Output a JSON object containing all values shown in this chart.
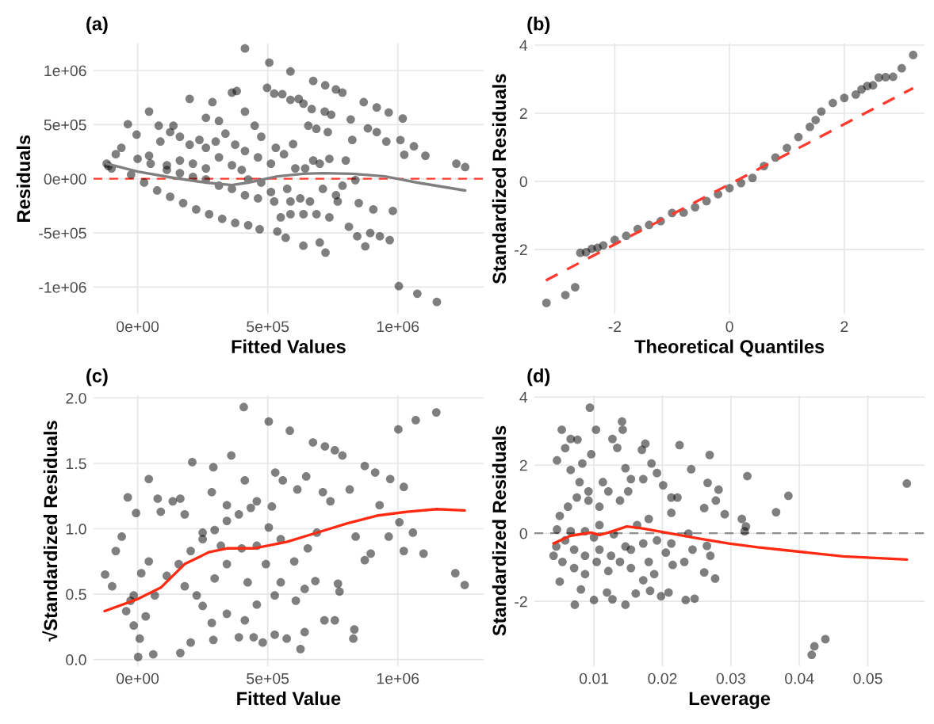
{
  "chart_data": [
    {
      "type": "scatter",
      "title": "(a)",
      "xlabel": "Fitted Values",
      "ylabel": "Residuals",
      "grid": true,
      "xlim": [
        -170000,
        1330000
      ],
      "ylim": [
        -1250000,
        1250000
      ],
      "xticks": [
        {
          "value": 0,
          "label": "0e+00"
        },
        {
          "value": 500000,
          "label": "5e+05"
        },
        {
          "value": 1000000,
          "label": "1e+06"
        }
      ],
      "yticks": [
        {
          "value": -1000000,
          "label": "-1e+06"
        },
        {
          "value": -500000,
          "label": "-5e+05"
        },
        {
          "value": 0,
          "label": "0e+00"
        },
        {
          "value": 500000,
          "label": "5e+05"
        },
        {
          "value": 1000000,
          "label": "1e+06"
        }
      ],
      "ref_lines": [
        {
          "axis": "y",
          "value": 0,
          "color": "#ff3b2f",
          "line_style": "dashed"
        }
      ],
      "series": [
        {
          "marker": "circle",
          "color": "#000000",
          "x": [
            412500,
            506000,
            587500,
            675000,
            721000,
            762000,
            787000,
            497500,
            525000,
            556000,
            587500,
            619000,
            637500,
            669000,
            869000,
            919000,
            965000,
            1019000,
            819000,
            885000,
            919000,
            956000,
            1010000,
            1062000,
            1106000,
            1025000,
            1225000,
            1259000,
            837000,
            850000,
            906000,
            981000,
            812000,
            844000,
            894000,
            931000,
            969000,
            875000,
            1004000,
            1075000,
            1150000,
            722000,
            700000,
            637000,
            569000,
            537000,
            550000,
            737000,
            769000,
            712000,
            737000,
            731000,
            719000,
            744000,
            656000,
            687000,
            597500,
            531000,
            475000,
            412500,
            362500,
            381000,
            287500,
            262500,
            312500,
            200000,
            137500,
            81000,
            44000,
            -37500,
            -4000,
            -62500,
            -84000,
            -119000,
            -112000,
            -100000,
            -25000,
            25000,
            75000,
            125000,
            175000,
            225000,
            275000,
            325000,
            375000,
            425000,
            469000,
            87500,
            125000,
            162500,
            200000,
            237500,
            262500,
            300000,
            337500,
            375000,
            412500,
            450000,
            462500,
            512500,
            562500,
            606000,
            644000,
            675000,
            162500,
            212500,
            262500,
            312500,
            362500,
            400000,
            425000,
            475000,
            512500,
            575000,
            587500,
            625000,
            662500,
            687500,
            637500,
            587500,
            525000,
            462500,
            412500,
            362500,
            312500,
            262500,
            212500,
            162500,
            112500,
            50000,
            0,
            44000,
            112500,
            700000,
            762500,
            787500,
            800000,
            825000
          ],
          "values": [
            1204000,
            1073000,
            991000,
            904000,
            863000,
            825000,
            796000,
            840000,
            787000,
            781000,
            729000,
            738000,
            694000,
            644000,
            708000,
            659000,
            612000,
            557000,
            548000,
            466000,
            431000,
            344000,
            358000,
            300000,
            213000,
            222000,
            140000,
            108000,
            -12000,
            -224000,
            -283000,
            -297000,
            -443000,
            -531000,
            -501000,
            -531000,
            -566000,
            -624000,
            -991000,
            -1061000,
            -1137000,
            -682000,
            -589000,
            -618000,
            -545000,
            -487000,
            -356000,
            -356000,
            -210000,
            -93000,
            184000,
            431000,
            621000,
            592000,
            490000,
            461000,
            321000,
            286000,
            388000,
            621000,
            796000,
            810000,
            708000,
            563000,
            534000,
            738000,
            490000,
            490000,
            621000,
            504000,
            408000,
            286000,
            227000,
            140000,
            117000,
            96000,
            38000,
            -35000,
            -108000,
            -166000,
            -224000,
            -283000,
            -327000,
            -370000,
            -408000,
            -429000,
            -466000,
            344000,
            431000,
            388000,
            315000,
            359000,
            286000,
            344000,
            417000,
            315000,
            257000,
            490000,
            198000,
            140000,
            227000,
            96000,
            96000,
            169000,
            169000,
            140000,
            96000,
            198000,
            125000,
            82000,
            -6000,
            -35000,
            -122000,
            -93000,
            -210000,
            -181000,
            -210000,
            -327000,
            -327000,
            -327000,
            -210000,
            -181000,
            -152000,
            -93000,
            -64000,
            -6000,
            17000,
            52000,
            82000,
            140000,
            184000,
            213000,
            125000,
            140000,
            -152000,
            -64000,
            169000,
            359000
          ]
        },
        {
          "type": "line",
          "color": "#7f7f7f",
          "line_style": "solid",
          "x": [
            -119000,
            0,
            137500,
            262500,
            362500,
            425000,
            537500,
            637500,
            712500,
            825000,
            950000,
            1075000,
            1259000
          ],
          "values": [
            140000,
            67000,
            9000,
            -35000,
            -58000,
            -35000,
            23000,
            47000,
            52000,
            47000,
            23000,
            -35000,
            -108000
          ]
        }
      ]
    },
    {
      "type": "scatter",
      "title": "(b)",
      "xlabel": "Theoretical Quantiles",
      "ylabel": "Standardized Residuals",
      "grid": true,
      "xlim": [
        -3.4,
        3.4
      ],
      "ylim": [
        -3.9,
        4.05
      ],
      "xticks": [
        -2,
        0,
        2
      ],
      "yticks": [
        -2,
        0,
        2,
        4
      ],
      "series": [
        {
          "marker": "circle",
          "color": "#000000",
          "x": [
            -3.19,
            -2.86,
            -2.69,
            -2.6,
            -2.5,
            -2.4,
            -2.3,
            -2.2,
            -2.0,
            -1.8,
            -1.6,
            -1.4,
            -1.2,
            -1.0,
            -0.8,
            -0.6,
            -0.4,
            -0.2,
            0,
            0.2,
            0.4,
            0.6,
            0.8,
            1.0,
            1.2,
            1.4,
            1.5,
            1.6,
            1.8,
            2.0,
            2.2,
            2.3,
            2.4,
            2.5,
            2.6,
            2.72,
            2.85,
            3.0,
            3.2
          ],
          "values": [
            -3.57,
            -3.34,
            -3.11,
            -2.1,
            -2.08,
            -1.98,
            -1.95,
            -1.88,
            -1.72,
            -1.6,
            -1.4,
            -1.28,
            -1.17,
            -0.93,
            -0.92,
            -0.76,
            -0.58,
            -0.38,
            -0.2,
            -0.05,
            0.1,
            0.45,
            0.7,
            0.98,
            1.3,
            1.6,
            1.8,
            2.05,
            2.3,
            2.45,
            2.55,
            2.7,
            2.8,
            2.82,
            3.05,
            3.06,
            3.07,
            3.32,
            3.71
          ]
        },
        {
          "type": "line",
          "color": "#ff3b2f",
          "line_style": "dashed",
          "x": [
            -3.2,
            3.2
          ],
          "values": [
            -2.91,
            2.74
          ]
        }
      ]
    },
    {
      "type": "scatter",
      "title": "(c)",
      "xlabel": "Fitted Value",
      "ylabel": "√Standardized Residuals",
      "grid": true,
      "xlim": [
        -170000,
        1330000
      ],
      "ylim": [
        -0.05,
        2.02
      ],
      "xticks": [
        {
          "value": 0,
          "label": "0e+00"
        },
        {
          "value": 500000,
          "label": "5e+05"
        },
        {
          "value": 1000000,
          "label": "1e+06"
        }
      ],
      "yticks": [
        {
          "value": 0,
          "label": "0.0"
        },
        {
          "value": 0.5,
          "label": "0.5"
        },
        {
          "value": 1,
          "label": "1.0"
        },
        {
          "value": 1.5,
          "label": "1.5"
        },
        {
          "value": 2,
          "label": "2.0"
        }
      ],
      "series": [
        {
          "marker": "circle",
          "color": "#000000",
          "x": [
            408000,
            504000,
            585000,
            674000,
            720000,
            758000,
            787000,
            1002000,
            1069000,
            1148000,
            1221000,
            1257000,
            1099000,
            1023000,
            1058000,
            1006000,
            1023000,
            971000,
            913000,
            873000,
            815000,
            838000,
            873000,
            896000,
            930000,
            965000,
            833000,
            829000,
            758000,
            718000,
            770000,
            776000,
            683000,
            626000,
            642000,
            573000,
            527000,
            481000,
            446000,
            389000,
            291000,
            204000,
            164000,
            60000,
            423000,
            412000,
            291000,
            210000,
            360000,
            529000,
            558000,
            614000,
            648000,
            712000,
            741000,
            689000,
            654000,
            602000,
            550000,
            504000,
            458000,
            493000,
            550000,
            608000,
            642000,
            527000,
            458000,
            412000,
            343000,
            285000,
            250000,
            227000,
            181000,
            296000,
            343000,
            400000,
            320000,
            250000,
            181000,
            135000,
            77000,
            89000,
            164000,
            285000,
            343000,
            458000,
            -38000,
            -6000,
            -84000,
            -61000,
            43000,
            -125000,
            -98000,
            -44000,
            -27000,
            -15000,
            14000,
            43000,
            -15000,
            2000,
            8000,
            31000,
            66000,
            112000,
            158000,
            204000,
            250000,
            296000,
            343000,
            389000,
            435000,
            516000
          ],
          "values": [
            1.93,
            1.82,
            1.75,
            1.66,
            1.63,
            1.6,
            1.56,
            1.76,
            1.83,
            1.89,
            0.66,
            0.57,
            0.81,
            0.83,
            0.97,
            1.05,
            1.32,
            1.38,
            1.43,
            1.48,
            1.3,
            0.94,
            0.76,
            0.81,
            1.18,
            0.94,
            0.23,
            0.16,
            0.3,
            0.3,
            0.58,
            0.52,
            0.6,
            0.08,
            0.21,
            0.16,
            0.19,
            0.13,
            0.17,
            0.17,
            0.15,
            0.13,
            0.05,
            0.04,
            0.59,
            1.37,
            1.47,
            1.51,
            1.56,
            1.43,
            1.37,
            1.3,
            1.4,
            1.28,
            1.21,
            0.97,
            0.85,
            0.75,
            0.92,
            1.01,
            0.87,
            0.73,
            0.59,
            0.45,
            0.54,
            0.49,
            0.42,
            0.3,
            0.35,
            0.28,
            0.41,
            0.49,
            0.56,
            0.62,
            0.73,
            0.85,
            0.87,
            0.97,
            1.11,
            1.21,
            1.23,
            1.13,
            1.23,
            1.28,
            1.18,
            1.21,
            1.24,
            1.12,
            0.83,
            0.94,
            1.38,
            0.65,
            0.56,
            0.37,
            0.45,
            0.49,
            0.66,
            0.75,
            0.26,
            0.02,
            0.16,
            0.33,
            0.49,
            0.64,
            0.73,
            0.83,
            0.92,
            0.99,
            1.06,
            1.11,
            1.16,
            1.17
          ]
        },
        {
          "type": "line",
          "color": "#ff2a12",
          "line_style": "solid",
          "x": [
            -127000,
            -3000,
            89000,
            181000,
            273000,
            343000,
            446000,
            573000,
            689000,
            804000,
            919000,
            1035000,
            1150000,
            1257000
          ],
          "values": [
            0.37,
            0.46,
            0.55,
            0.73,
            0.82,
            0.85,
            0.85,
            0.9,
            0.97,
            1.04,
            1.1,
            1.13,
            1.15,
            1.14
          ]
        }
      ]
    },
    {
      "type": "scatter",
      "title": "(d)",
      "xlabel": "Leverage",
      "ylabel": "Standardized Residuals",
      "grid": true,
      "xlim": [
        0.0013,
        0.0583
      ],
      "ylim": [
        -3.9,
        4.05
      ],
      "xticks": [
        0.01,
        0.02,
        0.03,
        0.04,
        0.05
      ],
      "yticks": [
        -2,
        0,
        2,
        4
      ],
      "ref_lines": [
        {
          "axis": "y",
          "value": 0,
          "color": "#8c8c8c",
          "line_style": "dashed"
        }
      ],
      "series": [
        {
          "marker": "circle",
          "color": "#000000",
          "x": [
            0.0094,
            0.0053,
            0.0103,
            0.0141,
            0.0142,
            0.0127,
            0.0134,
            0.0066,
            0.0076,
            0.0175,
            0.017,
            0.0225,
            0.0269,
            0.0242,
            0.0324,
            0.0384,
            0.0557,
            0.0366,
            0.0316,
            0.0322,
            0.032,
            0.0291,
            0.0282,
            0.0266,
            0.0278,
            0.0261,
            0.0265,
            0.027,
            0.0277,
            0.0261,
            0.0247,
            0.0234,
            0.0244,
            0.0238,
            0.0418,
            0.0422,
            0.0438,
            0.0209,
            0.0198,
            0.0161,
            0.0146,
            0.0127,
            0.01,
            0.0072,
            0.0081,
            0.005,
            0.0119,
            0.0182,
            0.0188,
            0.0172,
            0.0215,
            0.0232,
            0.0205,
            0.0213,
            0.0192,
            0.0172,
            0.0154,
            0.0138,
            0.0121,
            0.0104,
            0.0087,
            0.0071,
            0.0054,
            0.0041,
            0.0045,
            0.0058,
            0.0071,
            0.0087,
            0.0108,
            0.0125,
            0.0146,
            0.0046,
            0.005,
            0.0062,
            0.0075,
            0.0092,
            0.0108,
            0.0121,
            0.0138,
            0.015,
            0.0154,
            0.0146,
            0.0113,
            0.0092,
            0.0079,
            0.0066,
            0.0083,
            0.0096,
            0.0046,
            0.0058,
            0.0172,
            0.0184,
            0.0192,
            0.0201,
            0.0213,
            0.0222,
            0.0213,
            0.018,
            0.0163,
            0.0108,
            0.0087,
            0.0066,
            0.01,
            0.0129,
            0.018,
            0.0154
          ],
          "values": [
            3.69,
            3.04,
            3.04,
            3.28,
            3.04,
            2.77,
            2.51,
            2.77,
            2.75,
            2.63,
            2.45,
            2.59,
            2.3,
            1.88,
            1.68,
            1.1,
            1.46,
            0.62,
            0.42,
            0.2,
            0.06,
            0.56,
            1.28,
            1.48,
            0.96,
            0.74,
            -0.37,
            -0.66,
            -1.33,
            -1.15,
            -1.92,
            -1.96,
            -0.48,
            -0.01,
            -3.57,
            -3.32,
            -3.11,
            -1.74,
            -1.85,
            -1.77,
            -2.1,
            -1.94,
            -1.96,
            -2.1,
            -1.65,
            -1.42,
            -1.74,
            -1.69,
            -1.2,
            -1.38,
            -0.93,
            -0.84,
            -0.57,
            -0.3,
            -0.21,
            -0.3,
            -0.48,
            -0.84,
            -1.11,
            -0.84,
            -1.2,
            -1.02,
            -0.84,
            -0.66,
            -0.39,
            -0.21,
            -0.48,
            -0.66,
            -0.48,
            -0.66,
            -0.39,
            0.11,
            0.51,
            0.78,
            1.05,
            0.96,
            0.78,
            1.23,
            0.96,
            1.23,
            1.59,
            1.91,
            1.5,
            1.23,
            1.5,
            1.86,
            2.05,
            2.32,
            2.14,
            2.5,
            1.59,
            2.05,
            1.77,
            1.41,
            1.05,
            1.05,
            0.6,
            0.42,
            0.24,
            0.24,
            0.06,
            0.06,
            -0.12,
            -0.03,
            -0.84,
            -1.02
          ]
        },
        {
          "type": "line",
          "color": "#ff2a12",
          "line_style": "solid",
          "x": [
            0.0041,
            0.0066,
            0.0096,
            0.0108,
            0.0121,
            0.0148,
            0.0171,
            0.0213,
            0.0255,
            0.0297,
            0.0339,
            0.0381,
            0.0423,
            0.0464,
            0.0557
          ],
          "values": [
            -0.3,
            -0.07,
            0.02,
            -0.05,
            0.02,
            0.2,
            0.14,
            -0.01,
            -0.16,
            -0.3,
            -0.41,
            -0.5,
            -0.59,
            -0.68,
            -0.77
          ]
        }
      ]
    }
  ]
}
